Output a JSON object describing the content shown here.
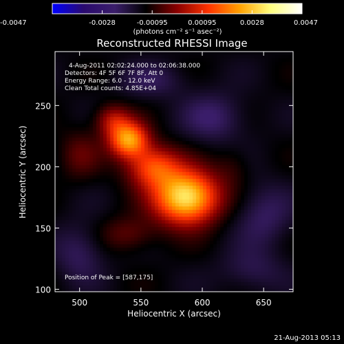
{
  "colorbar": {
    "tick_labels": [
      "-0.0047",
      "-0.0028",
      "-0.00095",
      "0.00095",
      "0.0028",
      "0.0047"
    ],
    "units_label": "(photons cm⁻² s⁻¹ asec⁻²)"
  },
  "info": {
    "time_range": "4-Aug-2011 02:02:24.000 to 02:06:38.000",
    "detectors": "Detectors: 4F 5F 6F 7F 8F, Att 0",
    "energy": "Energy Range: 6.0 - 12.0 keV",
    "clean": "Clean     Total counts: 4.85E+04",
    "peak": "Position of Peak = [587,175]"
  },
  "footer": {
    "date": "21-Aug-2013 05:13"
  },
  "chart_data": {
    "type": "heatmap",
    "title": "Reconstructed RHESSI Image",
    "xlabel": "Heliocentric X (arcsec)",
    "ylabel": "Heliocentric Y (arcsec)",
    "xlim": [
      480,
      674
    ],
    "ylim": [
      98,
      294
    ],
    "x_ticks": [
      500,
      550,
      600,
      650
    ],
    "y_ticks": [
      100,
      150,
      200,
      250
    ],
    "color_range": [
      -0.0047,
      0.0047
    ],
    "colormap": [
      "#0000ff",
      "#2a0a6e",
      "#3b1e6a",
      "#000000",
      "#8a0000",
      "#ff3300",
      "#ffa000",
      "#ffff80",
      "#ffffff"
    ],
    "sources": [
      {
        "x": 587,
        "y": 175,
        "amplitude": 0.0047,
        "sx": 18,
        "sy": 15
      },
      {
        "x": 540,
        "y": 222,
        "amplitude": 0.0036,
        "sx": 11,
        "sy": 10
      },
      {
        "x": 560,
        "y": 200,
        "amplitude": 0.0026,
        "sx": 15,
        "sy": 12
      },
      {
        "x": 527,
        "y": 238,
        "amplitude": 0.0016,
        "sx": 10,
        "sy": 9
      },
      {
        "x": 500,
        "y": 210,
        "amplitude": 0.0008,
        "sx": 12,
        "sy": 14
      },
      {
        "x": 540,
        "y": 145,
        "amplitude": 0.0009,
        "sx": 16,
        "sy": 10
      },
      {
        "x": 625,
        "y": 200,
        "amplitude": 0.0005,
        "sx": 10,
        "sy": 12
      },
      {
        "x": 610,
        "y": 240,
        "amplitude": -0.001,
        "sx": 18,
        "sy": 14
      },
      {
        "x": 650,
        "y": 160,
        "amplitude": -0.0009,
        "sx": 16,
        "sy": 18
      },
      {
        "x": 500,
        "y": 130,
        "amplitude": -0.0009,
        "sx": 14,
        "sy": 16
      },
      {
        "x": 560,
        "y": 270,
        "amplitude": -0.0007,
        "sx": 20,
        "sy": 10
      },
      {
        "x": 640,
        "y": 115,
        "amplitude": -0.0007,
        "sx": 18,
        "sy": 12
      }
    ],
    "peak": [
      587,
      175
    ],
    "grid": false
  }
}
